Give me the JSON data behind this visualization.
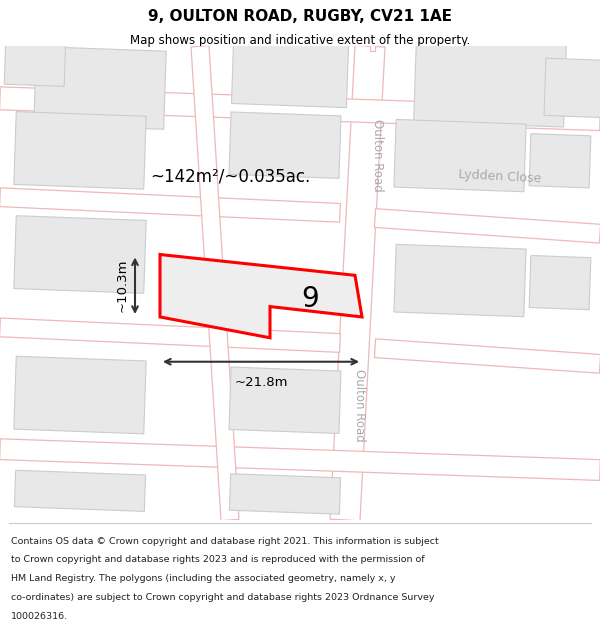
{
  "title": "9, OULTON ROAD, RUGBY, CV21 1AE",
  "subtitle": "Map shows position and indicative extent of the property.",
  "footer_lines": [
    "Contains OS data © Crown copyright and database right 2021. This information is subject",
    "to Crown copyright and database rights 2023 and is reproduced with the permission of",
    "HM Land Registry. The polygons (including the associated geometry, namely x, y",
    "co-ordinates) are subject to Crown copyright and database rights 2023 Ordnance Survey",
    "100026316."
  ],
  "road_color": "#f0b8b8",
  "road_fill": "#ffffff",
  "block_fill": "#e8e8e8",
  "block_edge": "#cccccc",
  "prop_fill": "#eeeeee",
  "prop_edge": "#ff0000",
  "dim_color": "#333333",
  "label_color": "#aaaaaa",
  "area_text": "~142m²/~0.035ac.",
  "width_text": "~21.8m",
  "height_text": "~10.3m",
  "property_number": "9",
  "road_label_upper": "Oulton Road",
  "road_label_lower": "Oulton Road",
  "close_label": "Lydden Close"
}
